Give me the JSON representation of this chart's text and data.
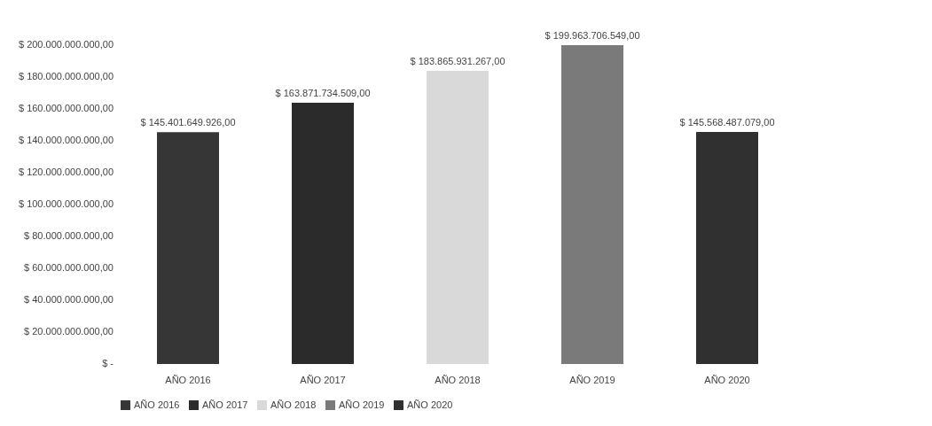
{
  "chart_data": {
    "type": "bar",
    "categories": [
      "AÑO 2016",
      "AÑO 2017",
      "AÑO 2018",
      "AÑO 2019",
      "AÑO 2020"
    ],
    "series": [
      {
        "name": "AÑO 2016",
        "color": "#363636",
        "values": [
          145401649926,
          null,
          null,
          null,
          null
        ],
        "value_labels": [
          "$ 145.401.649.926,00",
          null,
          null,
          null,
          null
        ]
      },
      {
        "name": "AÑO 2017",
        "color": "#2b2b2b",
        "values": [
          null,
          163871734509,
          null,
          null,
          null
        ],
        "value_labels": [
          null,
          "$ 163.871.734.509,00",
          null,
          null,
          null
        ]
      },
      {
        "name": "AÑO 2018",
        "color": "#d9d9d9",
        "values": [
          null,
          null,
          183865931267,
          null,
          null
        ],
        "value_labels": [
          null,
          null,
          "$ 183.865.931.267,00",
          null,
          null
        ]
      },
      {
        "name": "AÑO 2019",
        "color": "#7a7a7a",
        "values": [
          null,
          null,
          null,
          199963706549,
          null
        ],
        "value_labels": [
          null,
          null,
          null,
          "$ 199.963.706.549,00",
          null
        ]
      },
      {
        "name": "AÑO 2020",
        "color": "#303030",
        "values": [
          null,
          null,
          null,
          null,
          145568487079
        ],
        "value_labels": [
          null,
          null,
          null,
          null,
          "$ 145.568.487.079,00"
        ]
      }
    ],
    "ylim": [
      0,
      200000000000
    ],
    "yticks": [
      {
        "value": 0,
        "label": "$ -"
      },
      {
        "value": 20000000000,
        "label": "$ 20.000.000.000,00"
      },
      {
        "value": 40000000000,
        "label": "$ 40.000.000.000,00"
      },
      {
        "value": 60000000000,
        "label": "$ 60.000.000.000,00"
      },
      {
        "value": 80000000000,
        "label": "$ 80.000.000.000,00"
      },
      {
        "value": 100000000000,
        "label": "$ 100.000.000.000,00"
      },
      {
        "value": 120000000000,
        "label": "$ 120.000.000.000,00"
      },
      {
        "value": 140000000000,
        "label": "$ 140.000.000.000,00"
      },
      {
        "value": 160000000000,
        "label": "$ 160.000.000.000,00"
      },
      {
        "value": 180000000000,
        "label": "$ 180.000.000.000,00"
      },
      {
        "value": 200000000000,
        "label": "$ 200.000.000.000,00"
      }
    ],
    "legend": "bottom",
    "grid": false
  }
}
